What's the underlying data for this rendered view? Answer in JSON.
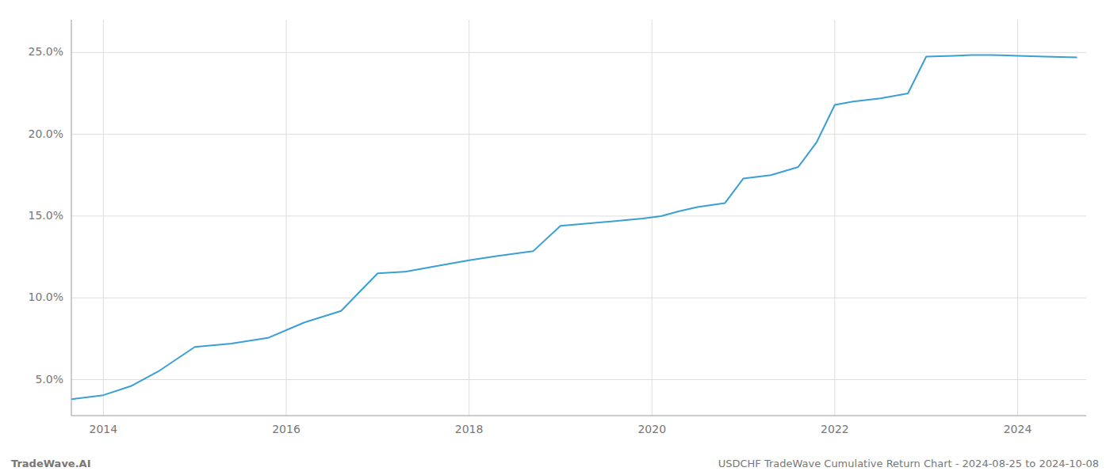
{
  "chart_data": {
    "type": "line",
    "annotations": [
      "TradeWave.AI",
      "USDCHF TradeWave Cumulative Return Chart - 2024-08-25 to 2024-10-08"
    ],
    "x": [
      2013.65,
      2014.0,
      2014.3,
      2014.6,
      2015.0,
      2015.4,
      2015.8,
      2016.2,
      2016.6,
      2017.0,
      2017.3,
      2017.6,
      2018.0,
      2018.3,
      2018.7,
      2019.0,
      2019.3,
      2019.6,
      2019.9,
      2020.1,
      2020.3,
      2020.5,
      2020.8,
      2021.0,
      2021.3,
      2021.6,
      2021.8,
      2022.0,
      2022.2,
      2022.5,
      2022.8,
      2023.0,
      2023.3,
      2023.5,
      2023.7,
      2024.0,
      2024.3,
      2024.65
    ],
    "series": [
      {
        "color": "#3a9fd4",
        "values": [
          3.8,
          4.05,
          4.6,
          5.5,
          7.0,
          7.2,
          7.55,
          8.5,
          9.2,
          11.5,
          11.6,
          11.9,
          12.3,
          12.55,
          12.85,
          14.4,
          14.55,
          14.7,
          14.85,
          15.0,
          15.3,
          15.55,
          15.8,
          17.3,
          17.5,
          18.0,
          19.5,
          21.8,
          22.0,
          22.2,
          22.5,
          24.75,
          24.8,
          24.85,
          24.85,
          24.8,
          24.75,
          24.7
        ]
      }
    ],
    "xlim": [
      2013.65,
      2024.75
    ],
    "ylim": [
      2.8,
      27.0
    ],
    "xticks": [
      2014,
      2016,
      2018,
      2020,
      2022,
      2024
    ],
    "yticks": [
      {
        "value": 5.0,
        "label": "5.0%"
      },
      {
        "value": 10.0,
        "label": "10.0%"
      },
      {
        "value": 15.0,
        "label": "15.0%"
      },
      {
        "value": 20.0,
        "label": "20.0%"
      },
      {
        "value": 25.0,
        "label": "25.0%"
      }
    ],
    "grid": true
  }
}
